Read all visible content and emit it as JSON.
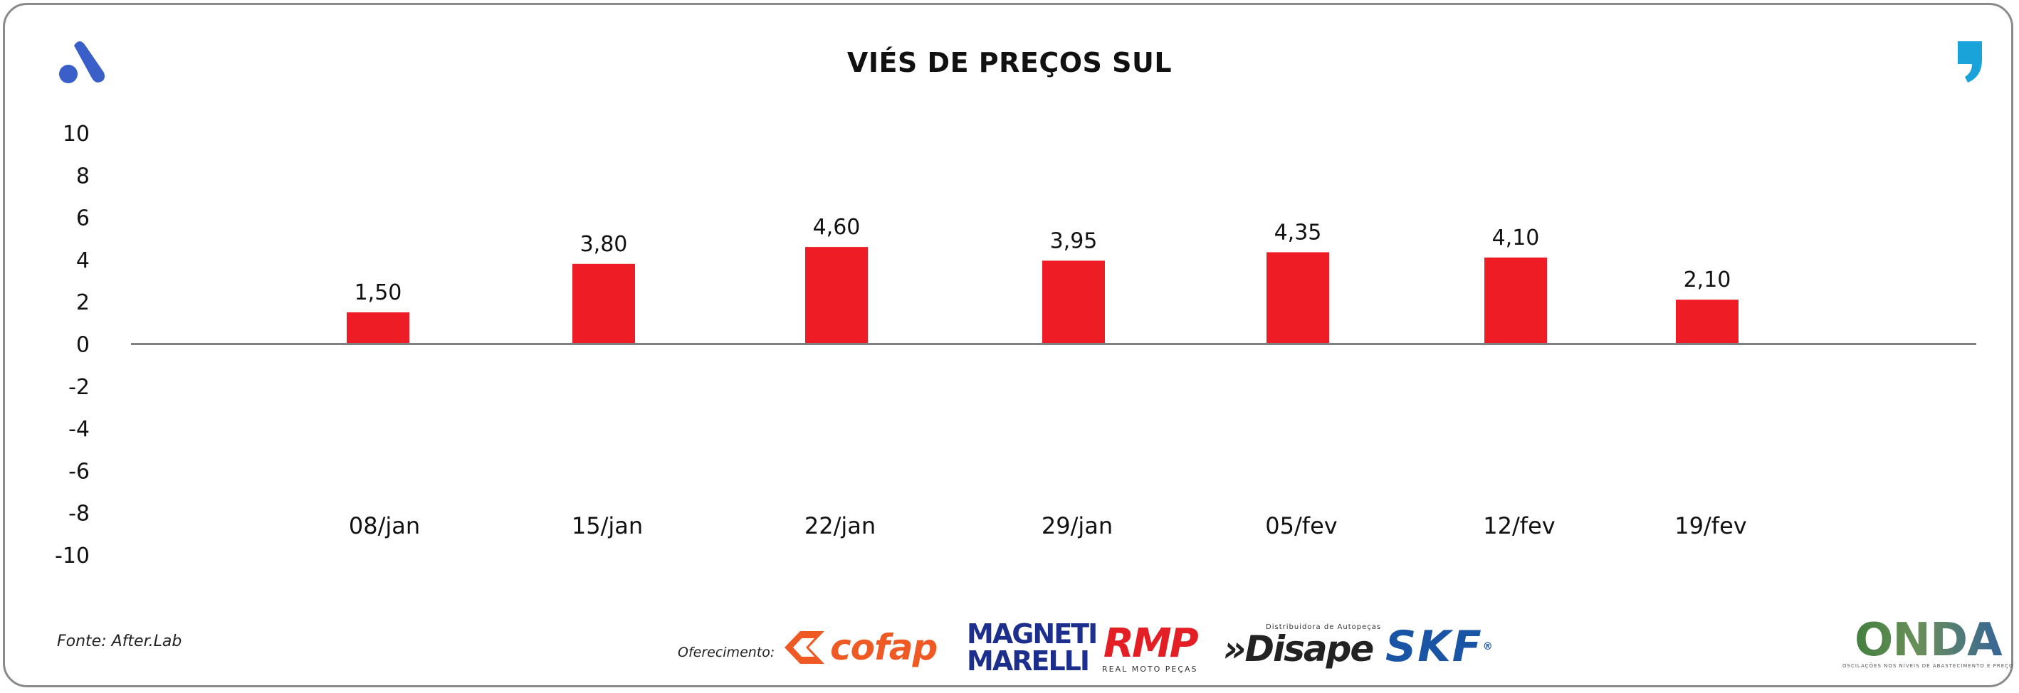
{
  "header": {
    "title": "VIÉS DE PREÇOS SUL"
  },
  "footer": {
    "source": "Fonte: After.Lab",
    "sponsor_label": "Oferecimento:",
    "sponsors": {
      "cofap": "cofap",
      "magneti_line1": "MAGNETI",
      "magneti_line2": "MARELLI",
      "rmp": "RMP",
      "rmp_sub": "REAL MOTO PEÇAS",
      "disape_sub": "Distribuidora de Autopeças",
      "disape": "»Disape",
      "skf": "SKF",
      "skf_mark": "®",
      "onda": "ONDA",
      "onda_sub": "OSCILAÇÕES NOS NÍVEIS DE ABASTECIMENTO E PREÇO"
    }
  },
  "colors": {
    "bar": "#ee1c25",
    "axis": "#808080",
    "accent_blue": "#3a5fc8",
    "quote_blue": "#1aa3d9"
  },
  "icons": [
    "brand-a-icon",
    "quote-mark-icon",
    "cofap-chevron-icon"
  ],
  "chart_data": {
    "type": "bar",
    "title": "VIÉS DE PREÇOS SUL",
    "xlabel": "",
    "ylabel": "",
    "categories": [
      "08/jan",
      "15/jan",
      "22/jan",
      "29/jan",
      "05/fev",
      "12/fev",
      "19/fev"
    ],
    "values": [
      1.5,
      3.8,
      4.6,
      3.95,
      4.35,
      4.1,
      2.1
    ],
    "data_labels": [
      "1,50",
      "3,80",
      "4,60",
      "3,95",
      "4,35",
      "4,10",
      "2,10"
    ],
    "yticks": [
      "10",
      "8",
      "6",
      "4",
      "2",
      "0",
      "-2",
      "-4",
      "-6",
      "-8",
      "-10"
    ],
    "ylim": [
      -10,
      10
    ],
    "grid": false,
    "legend": "none"
  }
}
